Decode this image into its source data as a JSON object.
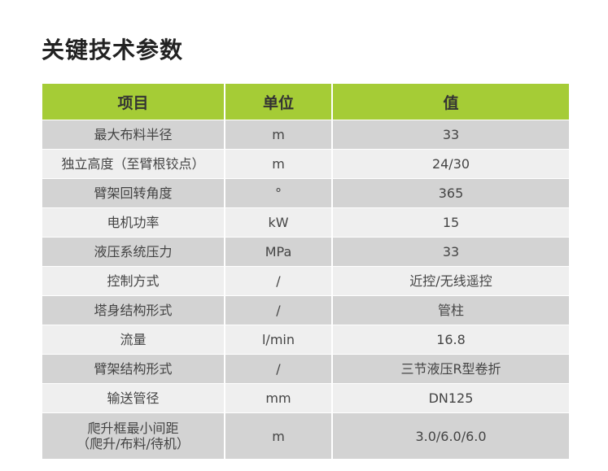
{
  "title": "关键技术参数",
  "colors": {
    "header": "#a5cc36",
    "row_dark": "#d3d3d3",
    "row_light": "#efefef"
  },
  "table": {
    "headers": [
      "项目",
      "单位",
      "值"
    ],
    "rows": [
      [
        "最大布料半径",
        "m",
        "33"
      ],
      [
        "独立高度（至臂根铰点）",
        "m",
        "24/30"
      ],
      [
        "臂架回转角度",
        "°",
        "365"
      ],
      [
        "电机功率",
        "kW",
        "15"
      ],
      [
        "液压系统压力",
        "MPa",
        "33"
      ],
      [
        "控制方式",
        "/",
        "近控/无线遥控"
      ],
      [
        "塔身结构形式",
        "/",
        "管柱"
      ],
      [
        "流量",
        "l/min",
        "16.8"
      ],
      [
        "臂架结构形式",
        "/",
        "三节液压R型卷折"
      ],
      [
        "输送管径",
        "mm",
        "DN125"
      ],
      [
        "爬升框最小间距\n（爬升/布料/待机）",
        "m",
        "3.0/6.0/6.0"
      ]
    ]
  }
}
